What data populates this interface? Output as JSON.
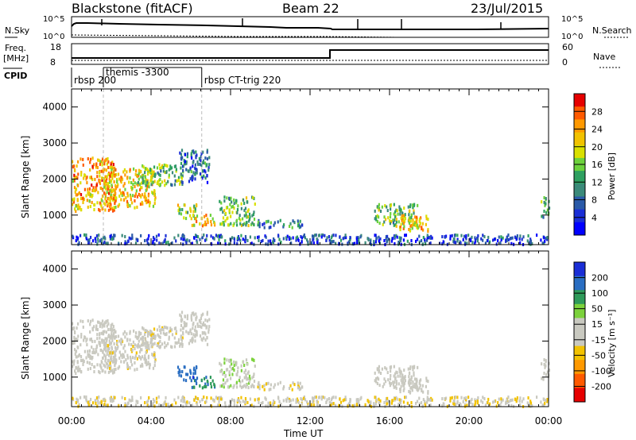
{
  "header": {
    "station": "Blackstone (fitACF)",
    "beam": "Beam 22",
    "date": "23/Jul/2015"
  },
  "top_panels": {
    "nsky_label": "N.Sky",
    "nsearch_label": "N.Search",
    "freq_label_1": "Freq.",
    "freq_label_2": "[MHz]",
    "nave_label": "Nave",
    "cpid_label": "CPID",
    "noise_ticks_left": [
      "10^5",
      "10^0"
    ],
    "noise_ticks_right": [
      "10^5",
      "10^0"
    ],
    "freq_ticks": [
      "18",
      "8"
    ],
    "nave_ticks": [
      "60",
      "0"
    ],
    "cpid_segments": [
      {
        "label": "rbsp 200",
        "start_hr": 0.0,
        "end_hr": 1.6
      },
      {
        "label": "themis -3300",
        "start_hr": 1.6,
        "end_hr": 6.55
      },
      {
        "label": "rbsp CT-trig 220",
        "start_hr": 6.55,
        "end_hr": 24.0
      }
    ],
    "freq_step_hr": 13.0
  },
  "axes": {
    "ylabel": "Slant Range [km]",
    "xlabel": "Time UT",
    "yticks": [
      "1000",
      "2000",
      "3000",
      "4000"
    ],
    "xticks": [
      "00:00",
      "04:00",
      "08:00",
      "12:00",
      "16:00",
      "20:00",
      "00:00"
    ]
  },
  "colorbars": {
    "power_label": "Power [dB]",
    "power_ticks": [
      "28",
      "24",
      "20",
      "16",
      "12",
      "8",
      "4"
    ],
    "power_colors": [
      "#e60000",
      "#ff5a00",
      "#ff9900",
      "#f2c200",
      "#d9e000",
      "#6cd23c",
      "#2ea060",
      "#3b8a7a",
      "#2a5aa8",
      "#1a2ed6",
      "#0000ff"
    ],
    "velocity_label": "Velocity [m s⁻¹]",
    "velocity_ticks": [
      "200",
      "100",
      "50",
      "15",
      "-15",
      "-50",
      "-100",
      "-200"
    ],
    "velocity_colors": [
      "#1a2ed6",
      "#2a6ec2",
      "#2e9a5a",
      "#7cd23c",
      "#c9c9c0",
      "#c9c9c0",
      "#f2c200",
      "#ff9900",
      "#ff5a00",
      "#e60000"
    ]
  },
  "chart_data": {
    "type": "heatmap",
    "x_range_hr": [
      0,
      24
    ],
    "y_range_km": [
      180,
      4500
    ],
    "power_range_db": [
      0,
      30
    ],
    "velocity_range_ms": [
      -250,
      250
    ],
    "echo_regions": [
      {
        "t0": 0.0,
        "t1": 2.2,
        "r0": 1100,
        "r1": 2600,
        "power": 22,
        "velocity": -20
      },
      {
        "t0": 1.6,
        "t1": 4.2,
        "r0": 1200,
        "r1": 2300,
        "power": 20,
        "velocity": -30
      },
      {
        "t0": 3.3,
        "t1": 5.6,
        "r0": 1800,
        "r1": 2400,
        "power": 14,
        "velocity": -25
      },
      {
        "t0": 5.4,
        "t1": 6.9,
        "r0": 1900,
        "r1": 2800,
        "power": 8,
        "velocity": 10
      },
      {
        "t0": 5.3,
        "t1": 6.3,
        "r0": 900,
        "r1": 1300,
        "power": 16,
        "velocity": 180
      },
      {
        "t0": 6.0,
        "t1": 7.2,
        "r0": 700,
        "r1": 1000,
        "power": 20,
        "velocity": 150
      },
      {
        "t0": 7.4,
        "t1": 9.2,
        "r0": 700,
        "r1": 1500,
        "power": 14,
        "velocity": 40
      },
      {
        "t0": 9.2,
        "t1": 11.6,
        "r0": 650,
        "r1": 850,
        "power": 10,
        "velocity": -40
      },
      {
        "t0": 15.2,
        "t1": 17.4,
        "r0": 700,
        "r1": 1300,
        "power": 14,
        "velocity": -5
      },
      {
        "t0": 16.3,
        "t1": 18.0,
        "r0": 550,
        "r1": 1000,
        "power": 20,
        "velocity": 5
      },
      {
        "t0": 23.6,
        "t1": 24.0,
        "r0": 900,
        "r1": 1500,
        "power": 12,
        "velocity": 0
      },
      {
        "t0": 0.0,
        "t1": 24.0,
        "r0": 180,
        "r1": 450,
        "power": 6,
        "velocity": -40
      }
    ]
  }
}
